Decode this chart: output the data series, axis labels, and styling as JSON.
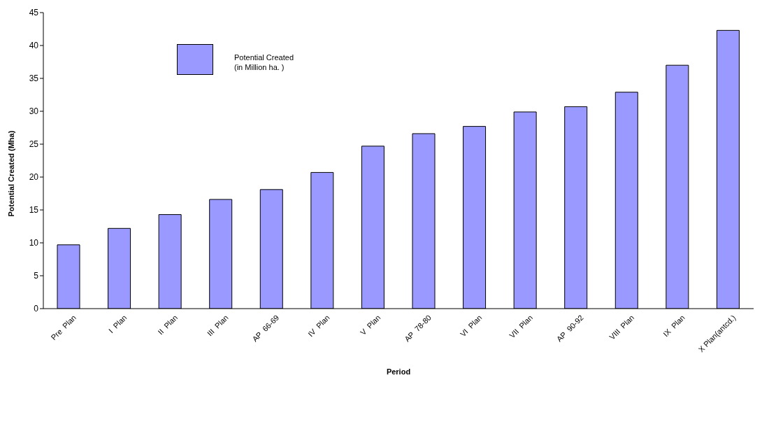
{
  "chart_data": {
    "type": "bar",
    "xlabel": "Period",
    "ylabel": "Potential Created (Mha)",
    "categories": [
      "Pre  Plan",
      "I  Plan",
      "II  Plan",
      "III  Plan",
      "AP  66-69",
      "IV  Plan",
      "V  Plan",
      "AP  78-80",
      "VI  Plan",
      "VII  Plan",
      "AP  90-92",
      "VIII  Plan",
      "IX  Plan",
      "X Plan(antcd.)"
    ],
    "series": [
      {
        "name": "Potential Created\n(in Million ha. )",
        "color": "#9999ff",
        "values": [
          9.7,
          12.2,
          14.3,
          16.6,
          18.1,
          20.7,
          24.7,
          26.6,
          27.7,
          29.9,
          30.7,
          32.9,
          37.0,
          42.3
        ]
      }
    ],
    "ylim": [
      0,
      45
    ],
    "yticks": [
      0,
      5,
      10,
      15,
      20,
      25,
      30,
      35,
      40,
      45
    ],
    "grid": false,
    "legend": "top left"
  }
}
